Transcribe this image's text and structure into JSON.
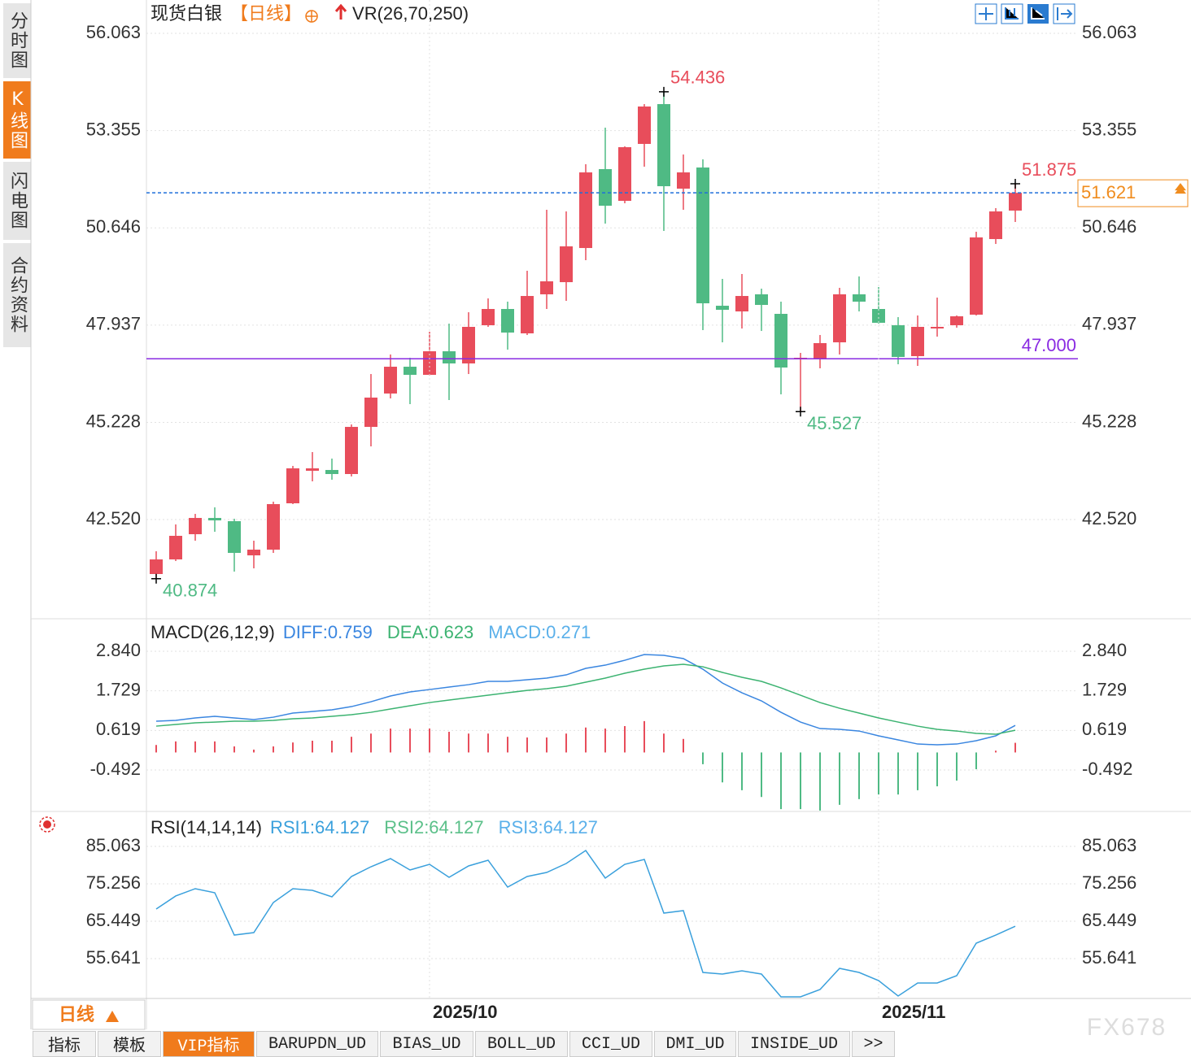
{
  "sidebar_tabs": [
    "分时图",
    "K线图",
    "闪电图",
    "合约资料"
  ],
  "chart_data": [
    {
      "type": "candlestick",
      "title": "现货白银",
      "subtitle": "【日线】",
      "indicator_label": "VR(26,70,250)",
      "categories": [
        null,
        null,
        null,
        null,
        null,
        null,
        null,
        null,
        null,
        null,
        null,
        null,
        null,
        null,
        "2025/10",
        null,
        null,
        null,
        null,
        null,
        null,
        null,
        null,
        null,
        null,
        null,
        null,
        null,
        null,
        null,
        null,
        null,
        null,
        null,
        null,
        null,
        null,
        "2025/11",
        null,
        null,
        null,
        null,
        null,
        null,
        null
      ],
      "open": [
        41.004,
        41.411,
        42.113,
        42.566,
        42.476,
        41.524,
        41.683,
        42.974,
        43.88,
        43.902,
        43.789,
        45.102,
        46.031,
        46.778,
        46.552,
        47.208,
        46.869,
        47.933,
        48.386,
        47.707,
        48.794,
        49.133,
        50.084,
        52.281,
        51.398,
        52.983,
        54.092,
        51.737,
        52.326,
        48.476,
        48.318,
        48.794,
        48.25,
        46.982,
        47.005,
        47.457,
        48.794,
        48.386,
        47.933,
        47.072,
        47.865,
        47.933,
        48.227,
        50.333,
        51.126
      ],
      "high": [
        41.638,
        42.385,
        42.679,
        42.861,
        42.544,
        41.932,
        43.019,
        44.015,
        44.4,
        44.219,
        45.17,
        46.574,
        47.118,
        47.027,
        47.752,
        47.978,
        48.295,
        48.68,
        48.59,
        49.45,
        51.149,
        51.103,
        52.417,
        53.436,
        52.915,
        54.092,
        54.436,
        52.688,
        52.553,
        49.224,
        49.36,
        48.952,
        48.59,
        47.163,
        47.661,
        48.975,
        49.292,
        48.997,
        48.159,
        48.205,
        48.703,
        48.205,
        50.537,
        51.194,
        51.875
      ],
      "low": [
        40.874,
        41.366,
        41.932,
        42.181,
        41.072,
        41.162,
        41.592,
        42.951,
        43.585,
        43.63,
        43.721,
        44.559,
        45.895,
        45.736,
        46.529,
        45.85,
        46.574,
        47.888,
        47.254,
        47.661,
        48.386,
        48.612,
        49.745,
        50.764,
        51.33,
        52.349,
        50.56,
        51.149,
        47.797,
        47.457,
        47.842,
        47.774,
        46.008,
        45.527,
        46.733,
        47.118,
        48.318,
        47.978,
        46.846,
        46.801,
        47.616,
        47.865,
        48.205,
        50.197,
        50.809
      ],
      "close": [
        41.411,
        42.068,
        42.566,
        42.498,
        41.592,
        41.683,
        42.951,
        43.947,
        43.947,
        43.789,
        45.102,
        45.918,
        46.778,
        46.552,
        47.208,
        46.869,
        47.888,
        48.386,
        47.729,
        48.748,
        49.156,
        50.13,
        52.19,
        51.262,
        52.892,
        54.025,
        51.805,
        52.19,
        48.544,
        48.363,
        48.748,
        48.499,
        46.755,
        47.027,
        47.435,
        48.794,
        48.59,
        48.001,
        47.05,
        47.888,
        47.888,
        48.182,
        50.379,
        51.103,
        51.621
      ],
      "up_color": "#e84d5b",
      "down_color": "#4fba84",
      "ylim": [
        39.781,
        56.063
      ],
      "yticks": [
        56.063,
        53.355,
        50.646,
        47.937,
        45.228,
        {
          "value": 42.52,
          "label": "42.520"
        }
      ],
      "grid": true,
      "annotations": [
        {
          "value": 54.436
        },
        {
          "value": 51.875
        },
        {
          "value": 45.527
        },
        {
          "value": 40.874
        }
      ],
      "hlines": [
        {
          "value": 47,
          "label": "47.000",
          "color": "#8a2be2"
        }
      ],
      "price_line_color": "#1e6fd9",
      "price_box_color": "#f08c1e"
    },
    {
      "type": "macd",
      "title": "MACD(26,12,9)",
      "series": [
        {
          "name": "DIFF:0.759",
          "color": "#3a86e0",
          "values": [
            0.876,
            0.899,
            0.968,
            1.013,
            0.968,
            0.922,
            0.99,
            1.105,
            1.15,
            1.196,
            1.287,
            1.424,
            1.584,
            1.698,
            1.766,
            1.835,
            1.903,
            1.995,
            1.995,
            2.04,
            2.086,
            2.177,
            2.36,
            2.451,
            2.588,
            2.748,
            2.725,
            2.634,
            2.337,
            1.949,
            1.675,
            1.447,
            1.127,
            0.853,
            0.671,
            0.648,
            0.602,
            0.466,
            0.352,
            0.237,
            0.215,
            0.237,
            0.329,
            0.466,
            0.759
          ]
        },
        {
          "name": "DEA:0.623",
          "color": "#3cb371",
          "values": [
            0.739,
            0.785,
            0.831,
            0.853,
            0.876,
            0.876,
            0.899,
            0.945,
            0.968,
            1.013,
            1.059,
            1.127,
            1.219,
            1.31,
            1.401,
            1.47,
            1.538,
            1.607,
            1.675,
            1.743,
            1.789,
            1.858,
            1.972,
            2.086,
            2.223,
            2.337,
            2.428,
            2.474,
            2.405,
            2.246,
            2.109,
            1.995,
            1.812,
            1.607,
            1.401,
            1.241,
            1.105,
            0.968,
            0.853,
            0.739,
            0.648,
            0.602,
            0.534,
            0.511,
            0.623
          ]
        },
        {
          "name": "MACD:0.271",
          "color": "#5ab0ea",
          "type": "bar",
          "up_color": "#e84d5b",
          "down_color": "#4fba84",
          "values": [
            0.21,
            0.31,
            0.31,
            0.31,
            0.17,
            0.08,
            0.17,
            0.28,
            0.33,
            0.33,
            0.44,
            0.53,
            0.67,
            0.67,
            0.67,
            0.58,
            0.53,
            0.53,
            0.44,
            0.42,
            0.42,
            0.53,
            0.7,
            0.67,
            0.74,
            0.88,
            0.53,
            0.38,
            -0.33,
            -0.84,
            -1.06,
            -1.25,
            -1.59,
            -1.59,
            -1.63,
            -1.47,
            -1.31,
            -1.18,
            -1.18,
            -1.06,
            -0.95,
            -0.79,
            -0.47,
            0.05,
            0.271
          ]
        }
      ],
      "ylim": [
        -1.633,
        2.84
      ],
      "yticks": [
        {
          "value": 2.84,
          "label": "2.840"
        },
        {
          "value": 1.729,
          "label": "1.729"
        },
        {
          "value": 0.619,
          "label": "0.619"
        },
        {
          "value": -0.492,
          "label": "-0.492"
        }
      ],
      "grid": true
    },
    {
      "type": "line",
      "title": "RSI(14,14,14)",
      "series": [
        {
          "name": "RSI1:64.127",
          "color": "#3aa0dc",
          "values": [
            68.64,
            72.06,
            73.98,
            72.91,
            61.82,
            62.46,
            70.35,
            73.98,
            73.55,
            71.84,
            77.17,
            79.73,
            81.86,
            78.88,
            80.37,
            76.96,
            79.95,
            81.44,
            74.4,
            77.17,
            78.24,
            80.58,
            83.99,
            76.75,
            80.37,
            81.65,
            67.58,
            68.22,
            52.01,
            51.59,
            52.44,
            51.59,
            45.62,
            45.62,
            47.54,
            53.08,
            52.01,
            49.88,
            45.83,
            49.24,
            49.24,
            51.16,
            59.69,
            61.82,
            64.127
          ]
        }
      ],
      "legend_extra": [
        {
          "name": "RSI2:64.127",
          "color": "#5cc08a"
        },
        {
          "name": "RSI3:64.127",
          "color": "#5ab0ea"
        }
      ],
      "ylim": [
        45.404,
        85.063
      ],
      "yticks": [
        85.063,
        75.256,
        65.449,
        55.641
      ],
      "grid": true
    }
  ],
  "period_button": "日线",
  "toolbar_tabs": [
    "指标",
    "模板",
    "VIP指标",
    "BARUPDN_UD",
    "BIAS_UD",
    "BOLL_UD",
    "CCI_UD",
    "DMI_UD",
    "INSIDE_UD",
    ">>"
  ],
  "watermark": "FX678"
}
